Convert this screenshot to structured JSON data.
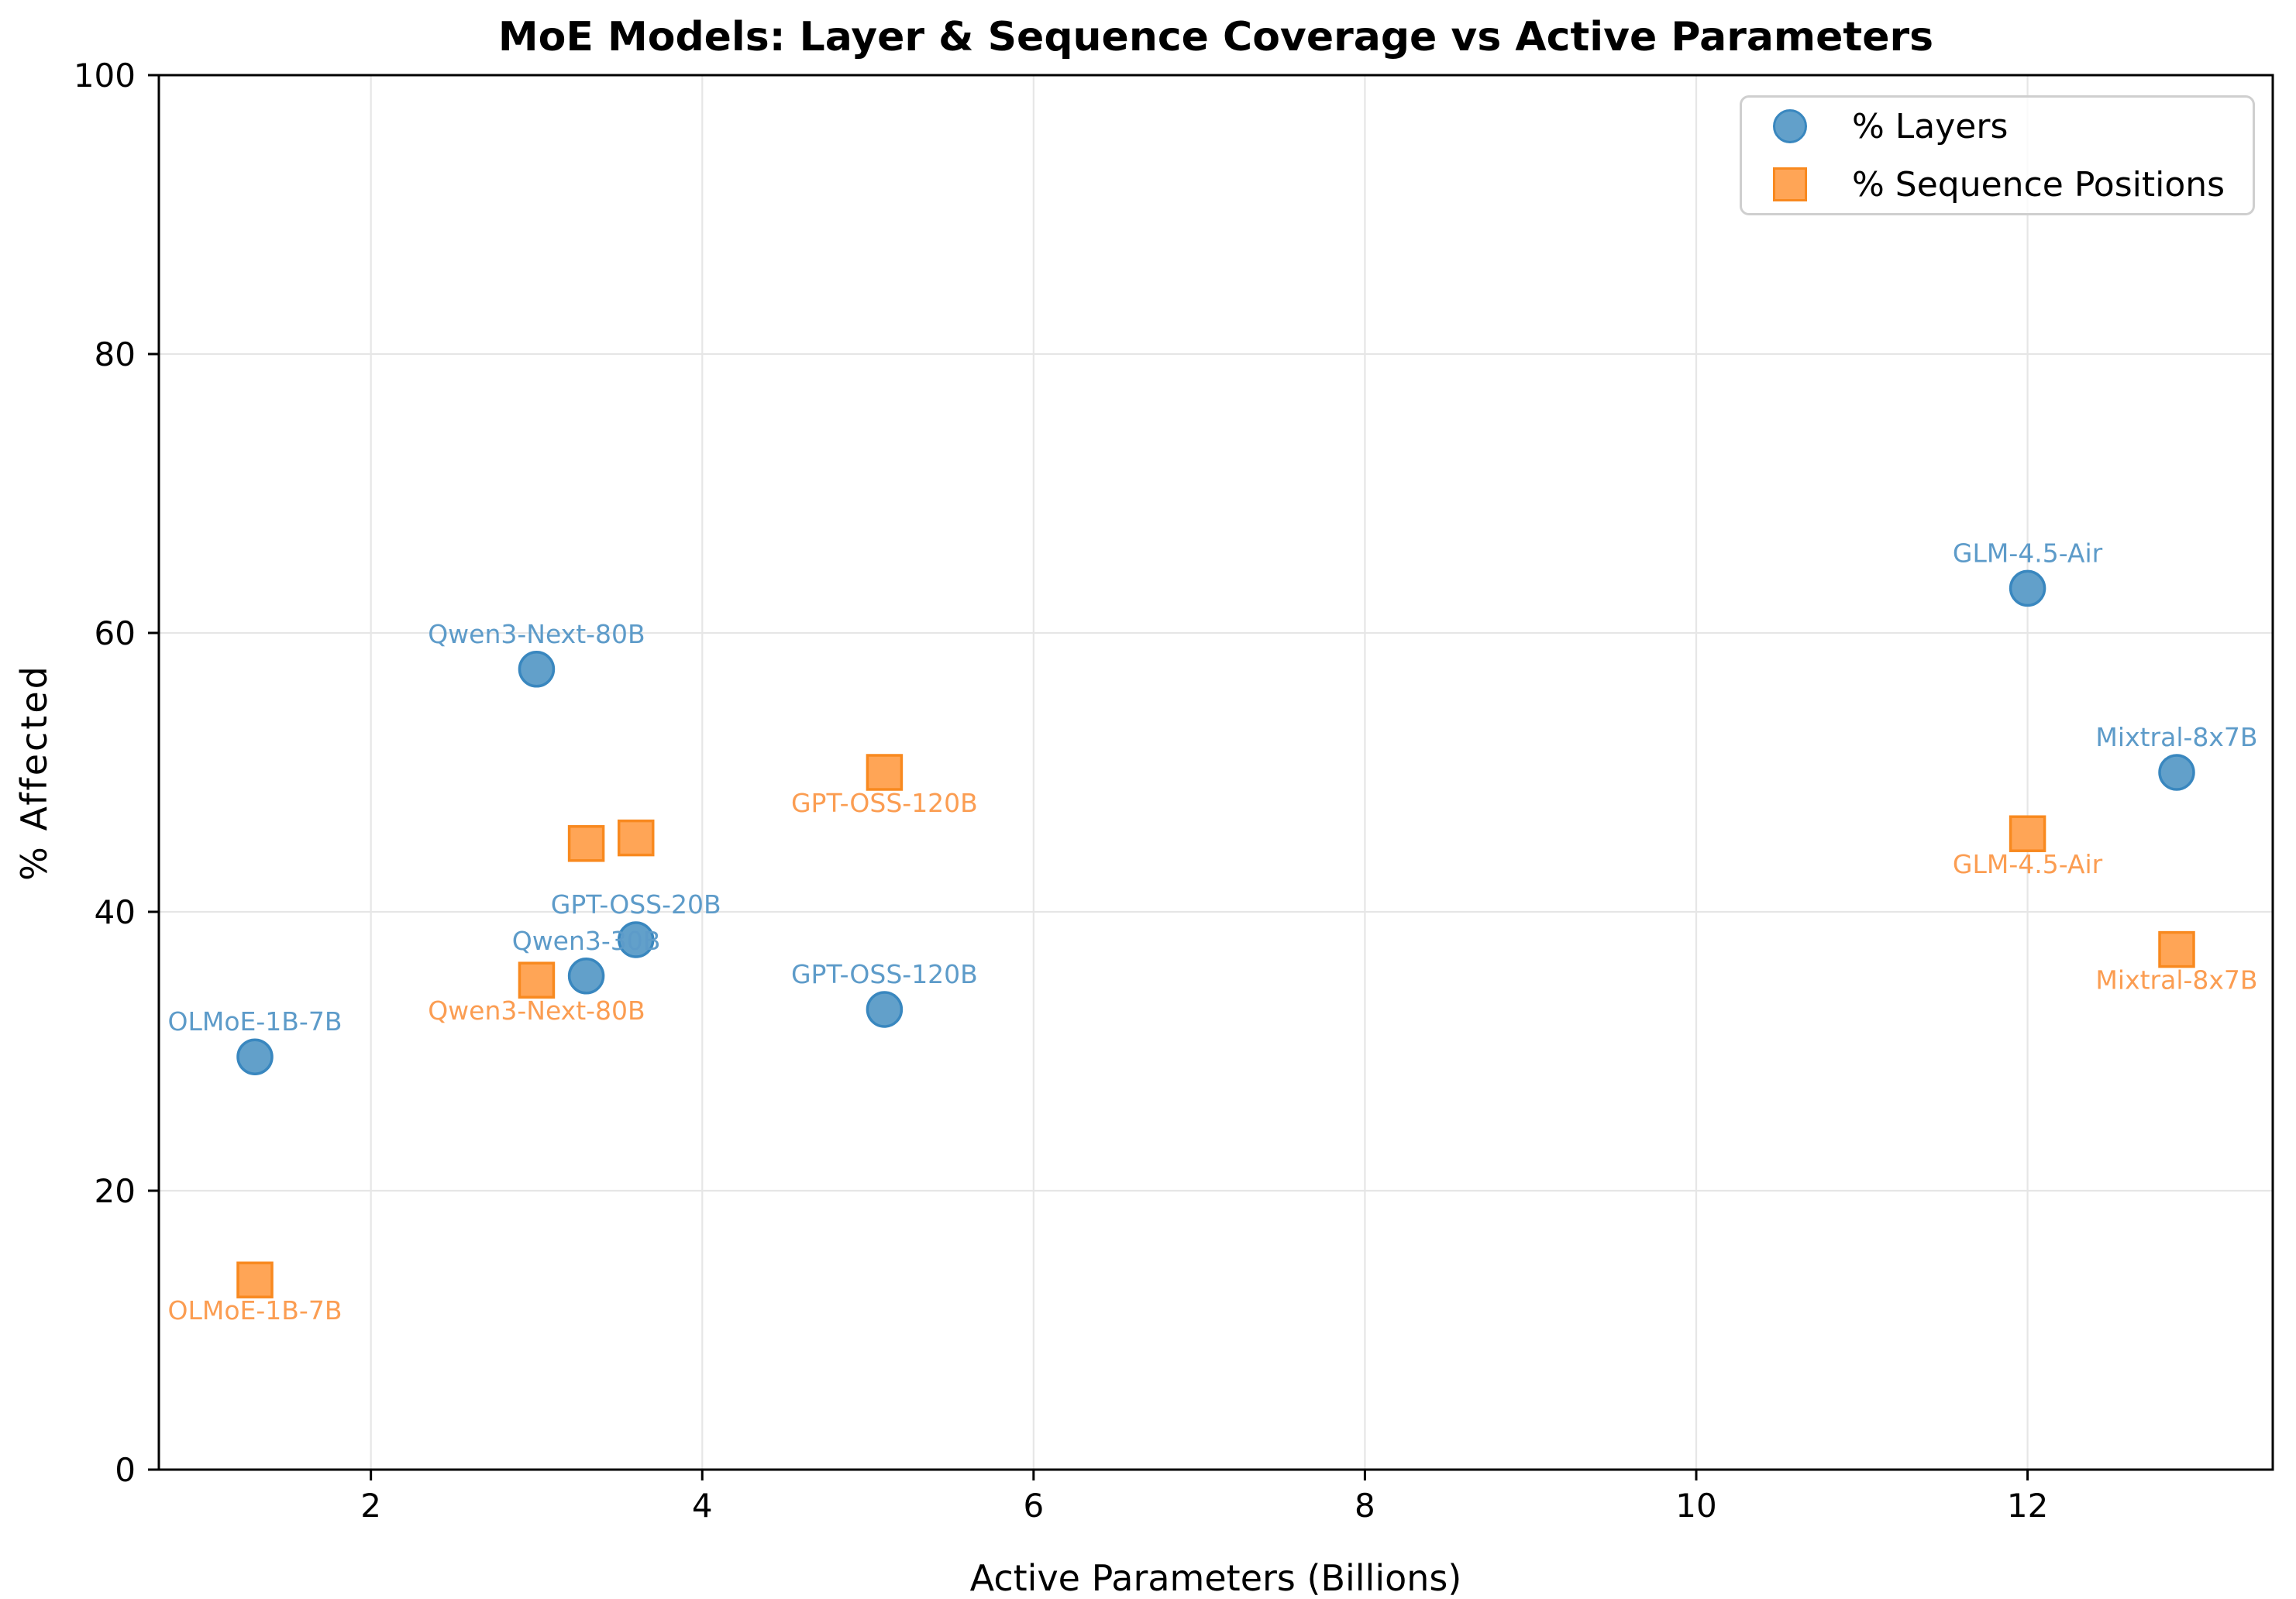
{
  "figure": {
    "title": "MoE Models: Layer & Sequence Coverage vs Active Parameters"
  },
  "chart_data": {
    "type": "scatter",
    "title": "MoE Models: Layer & Sequence Coverage vs Active Parameters",
    "xlabel": "Active Parameters (Billions)",
    "ylabel": "% Affected",
    "xlim": [
      0.72,
      13.48
    ],
    "ylim": [
      0,
      100
    ],
    "x_ticks": [
      2,
      4,
      6,
      8,
      10,
      12
    ],
    "y_ticks": [
      0,
      20,
      40,
      60,
      80,
      100
    ],
    "grid": true,
    "grid_color": "#e6e6e6",
    "legend_position": "upper-right",
    "models": [
      "OLMoE-1B-7B",
      "Qwen3-Next-80B",
      "Qwen3-30B",
      "GPT-OSS-20B",
      "GPT-OSS-120B",
      "GLM-4.5-Air",
      "Mixtral-8x7B"
    ],
    "series": [
      {
        "name": "% Layers",
        "marker": "circle",
        "color": "#1f77b4",
        "fill": "#62a0ca",
        "edge": "#3987bf",
        "label_color": "#5d9bc9",
        "label_offset_y": -46,
        "points": [
          {
            "model": "OLMoE-1B-7B",
            "x": 1.3,
            "y": 29.6,
            "labeled": true
          },
          {
            "model": "Qwen3-Next-80B",
            "x": 3.0,
            "y": 57.4,
            "labeled": true
          },
          {
            "model": "Qwen3-30B",
            "x": 3.3,
            "y": 35.4,
            "labeled": true
          },
          {
            "model": "GPT-OSS-20B",
            "x": 3.6,
            "y": 38.0,
            "labeled": true
          },
          {
            "model": "GPT-OSS-120B",
            "x": 5.1,
            "y": 33.0,
            "labeled": true
          },
          {
            "model": "GLM-4.5-Air",
            "x": 12.0,
            "y": 63.2,
            "labeled": true
          },
          {
            "model": "Mixtral-8x7B",
            "x": 12.9,
            "y": 50.0,
            "labeled": true
          }
        ]
      },
      {
        "name": "% Sequence Positions",
        "marker": "square",
        "color": "#ff7f0e",
        "fill": "#ffa556",
        "edge": "#f8891f",
        "label_color": "#fb9d52",
        "label_offset_y": 39,
        "points": [
          {
            "model": "OLMoE-1B-7B",
            "x": 1.3,
            "y": 13.6,
            "labeled": true
          },
          {
            "model": "Qwen3-Next-80B",
            "x": 3.0,
            "y": 35.1,
            "labeled": true
          },
          {
            "model": "Qwen3-30B",
            "x": 3.3,
            "y": 44.9,
            "labeled": false
          },
          {
            "model": "GPT-OSS-20B",
            "x": 3.6,
            "y": 45.3,
            "labeled": false
          },
          {
            "model": "GPT-OSS-120B",
            "x": 5.1,
            "y": 50.0,
            "labeled": true
          },
          {
            "model": "GLM-4.5-Air",
            "x": 12.0,
            "y": 45.6,
            "labeled": true
          },
          {
            "model": "Mixtral-8x7B",
            "x": 12.9,
            "y": 37.3,
            "labeled": true
          }
        ]
      }
    ]
  },
  "legend": {
    "items": [
      "% Layers",
      "% Sequence Positions"
    ]
  }
}
